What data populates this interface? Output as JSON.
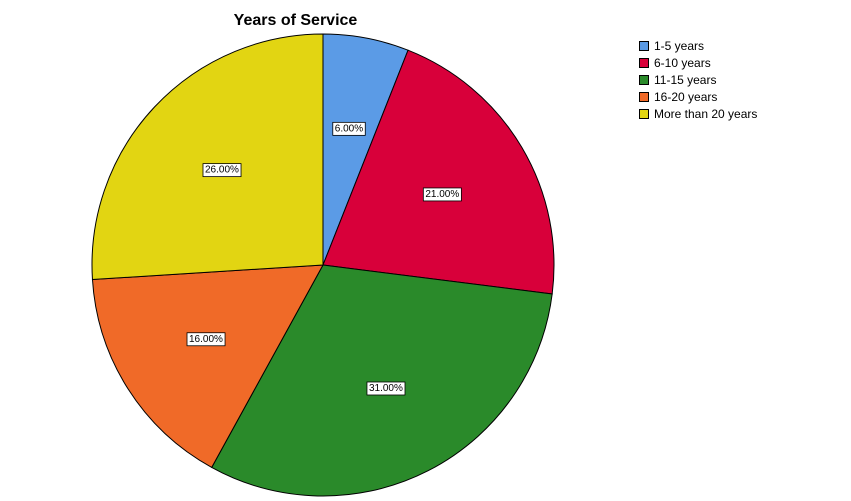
{
  "chart_data": {
    "type": "pie",
    "title": "Years of Service",
    "categories": [
      "1-5 years",
      "6-10 years",
      "11-15 years",
      "16-20 years",
      "More than 20 years"
    ],
    "values": [
      6.0,
      21.0,
      31.0,
      16.0,
      26.0
    ],
    "data_labels": [
      "6.00%",
      "21.00%",
      "31.00%",
      "16.00%",
      "26.00%"
    ],
    "colors": [
      "#5b9be6",
      "#d8003a",
      "#2a8a2a",
      "#f06a28",
      "#e2d512"
    ],
    "legend_position": "top-right"
  }
}
